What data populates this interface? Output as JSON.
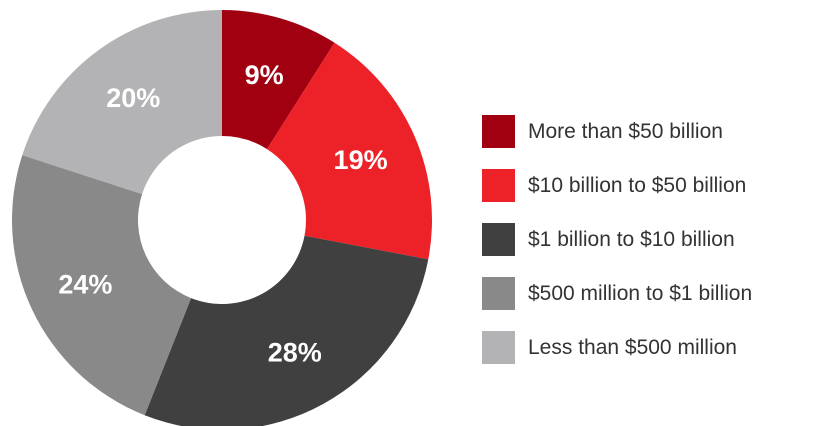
{
  "chart_data": {
    "type": "pie",
    "variant": "donut",
    "title": "",
    "categories": [
      "More than $50 billion",
      "$10 billion to $50 billion",
      "$1 billion to $10 billion",
      "$500 million to $1 billion",
      "Less than $500 million"
    ],
    "values": [
      9,
      19,
      28,
      24,
      20
    ],
    "value_labels": [
      "9%",
      "19%",
      "28%",
      "24%",
      "20%"
    ],
    "colors": [
      "#a00010",
      "#ed2228",
      "#404040",
      "#898989",
      "#b3b3b6"
    ],
    "start_angle": "top (12 o'clock)",
    "direction": "clockwise",
    "legend": {
      "position": "right",
      "marker": "square"
    }
  }
}
